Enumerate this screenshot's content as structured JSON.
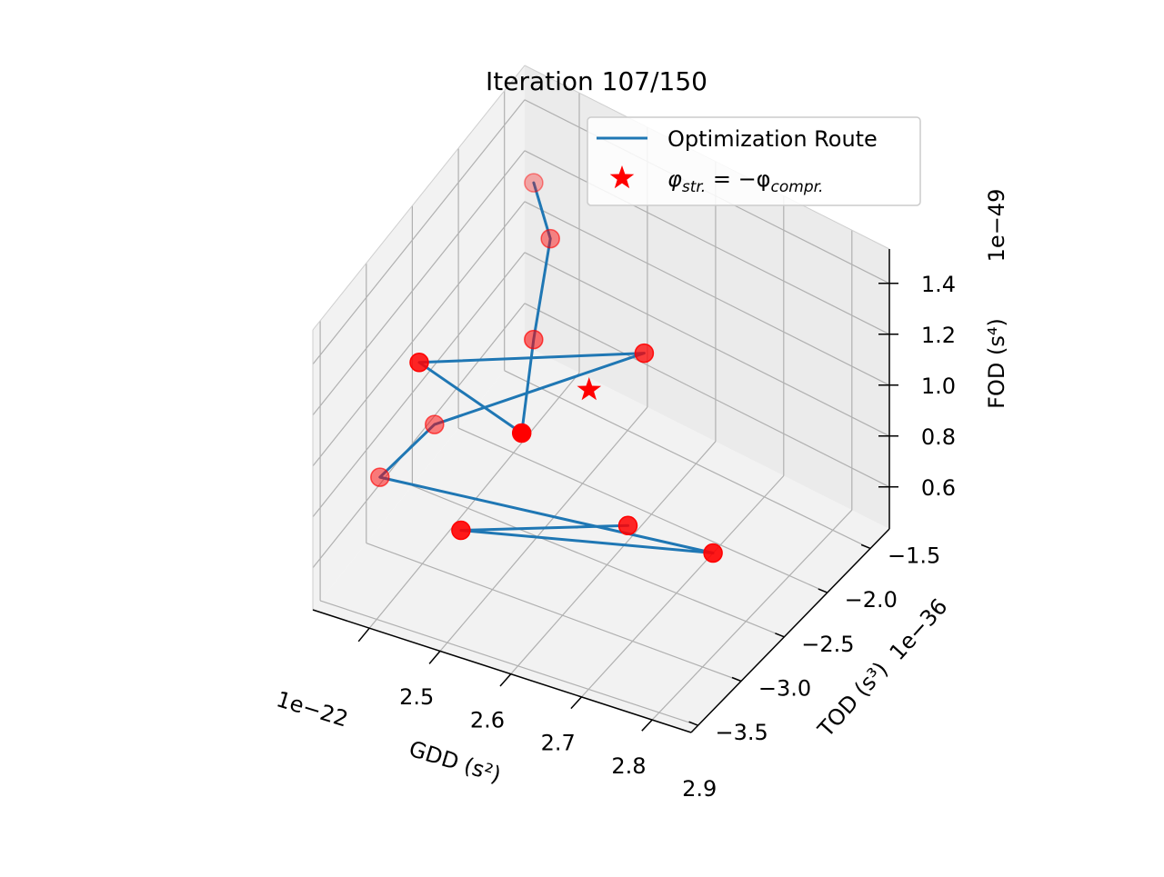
{
  "chart_data": {
    "type": "scatter",
    "projection": "3d",
    "title": "Iteration 107/150",
    "xlabel": "GDD (s²)",
    "ylabel": "TOD (s³)",
    "zlabel": "FOD (s⁴)",
    "x_offset_text": "1e−22",
    "y_offset_text": "1e−36",
    "z_offset_text": "1e−49",
    "x_ticks": [
      "2.5",
      "2.6",
      "2.7",
      "2.8",
      "2.9"
    ],
    "y_ticks": [
      "−1.5",
      "−2.0",
      "−2.5",
      "−3.0",
      "−3.5"
    ],
    "z_ticks": [
      "0.6",
      "0.8",
      "1.0",
      "1.2",
      "1.4"
    ],
    "grid": true,
    "legend_position": "top-right",
    "series": [
      {
        "name": "Optimization Route",
        "mark": "line+markers",
        "color": "#1f77b4",
        "marker_color": "#ff0000",
        "points": [
          {
            "x": 2.52,
            "y": -1.93,
            "z": 1.49
          },
          {
            "x": 2.56,
            "y": -2.05,
            "z": 1.37
          },
          {
            "x": 2.61,
            "y": -2.62,
            "z": 1.27
          },
          {
            "x": 2.62,
            "y": -2.83,
            "z": 1.0
          },
          {
            "x": 2.41,
            "y": -2.35,
            "z": 0.84
          },
          {
            "x": 2.64,
            "y": -1.62,
            "z": 0.84
          },
          {
            "x": 2.49,
            "y": -2.79,
            "z": 0.88
          },
          {
            "x": 2.45,
            "y": -3.08,
            "z": 0.76
          },
          {
            "x": 2.84,
            "y": -2.4,
            "z": 0.6
          },
          {
            "x": 2.55,
            "y": -2.96,
            "z": 0.6
          },
          {
            "x": 2.72,
            "y": -2.42,
            "z": 0.58
          }
        ]
      },
      {
        "name": "φstr. = −φcompr.",
        "legend_label": {
          "main": "φ",
          "sub1": "str.",
          "mid": " = −φ",
          "sub2": "compr."
        },
        "mark": "star",
        "color": "#ff0000",
        "points": [
          {
            "x": 2.62,
            "y": -2.08,
            "z": 0.86
          }
        ]
      }
    ]
  }
}
